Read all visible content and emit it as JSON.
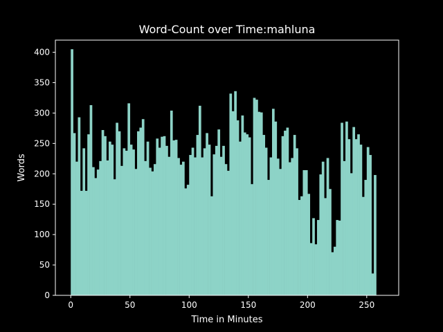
{
  "chart_data": {
    "type": "bar",
    "title": "Word-Count over Time:mahluna",
    "xlabel": "Time in Minutes",
    "ylabel": "Words",
    "xlim": [
      -13,
      277
    ],
    "ylim": [
      0,
      420
    ],
    "xticks": [
      0,
      50,
      100,
      150,
      200,
      250
    ],
    "yticks": [
      0,
      50,
      100,
      150,
      200,
      250,
      300,
      350,
      400
    ],
    "bin_width": 2,
    "x_start": 0,
    "values": [
      405,
      267,
      220,
      293,
      172,
      242,
      172,
      265,
      313,
      211,
      193,
      207,
      221,
      272,
      262,
      222,
      253,
      248,
      191,
      284,
      270,
      213,
      242,
      238,
      316,
      248,
      240,
      208,
      270,
      276,
      290,
      221,
      253,
      210,
      204,
      216,
      258,
      243,
      261,
      262,
      246,
      228,
      304,
      255,
      256,
      226,
      215,
      220,
      176,
      182,
      231,
      243,
      227,
      264,
      312,
      227,
      242,
      267,
      248,
      163,
      232,
      246,
      273,
      228,
      246,
      216,
      205,
      332,
      303,
      336,
      288,
      253,
      296,
      268,
      265,
      260,
      183,
      325,
      322,
      302,
      301,
      264,
      243,
      190,
      227,
      307,
      286,
      225,
      208,
      262,
      271,
      276,
      219,
      226,
      264,
      242,
      157,
      163,
      206,
      206,
      167,
      86,
      127,
      84,
      124,
      199,
      220,
      160,
      226,
      175,
      71,
      80,
      124,
      123,
      284,
      221,
      286,
      257,
      201,
      277,
      257,
      265,
      248,
      162,
      190,
      244,
      231,
      36,
      198
    ],
    "bar_color": "#8dd3c7",
    "background": "#000000",
    "axis_color": "#ffffff",
    "grid": false,
    "legend": "none"
  }
}
